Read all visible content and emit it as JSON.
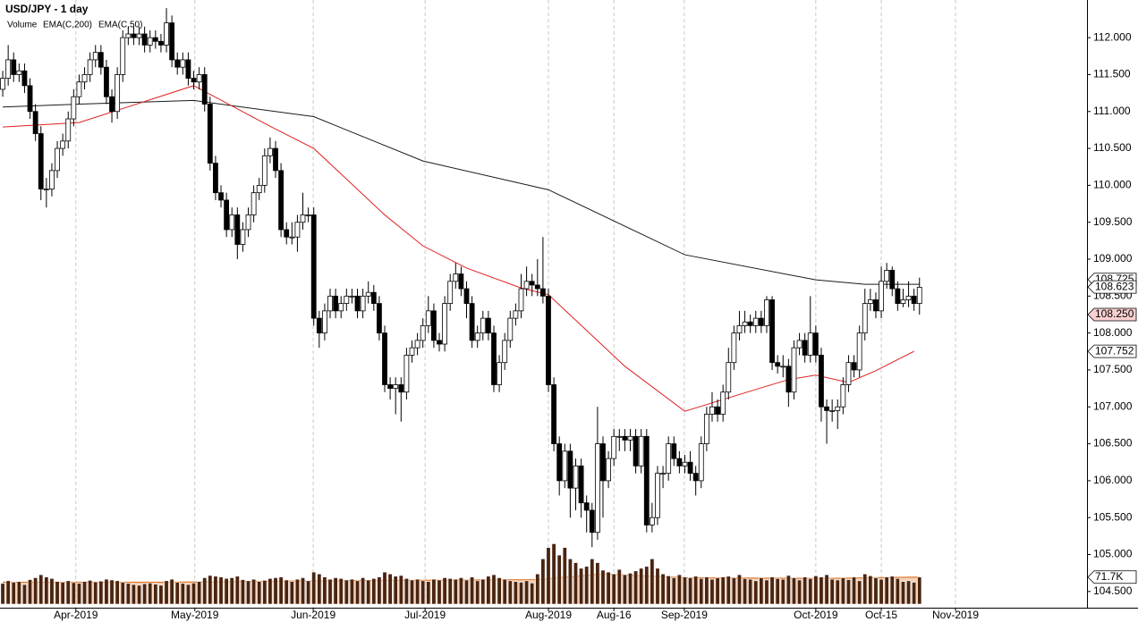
{
  "chart_data": {
    "type": "candlestick",
    "title": "USD/JPY - 1 day",
    "open": [
      111.3,
      111.45,
      111.7,
      111.5,
      111.55,
      111.35,
      111.0,
      110.7,
      109.95,
      109.95,
      110.2,
      110.5,
      110.6,
      110.9,
      111.2,
      111.4,
      111.5,
      111.7,
      111.8,
      111.6,
      111.2,
      111.0,
      111.5,
      112.0,
      112.05,
      112.0,
      112.05,
      111.9,
      112.0,
      111.95,
      111.9,
      112.2,
      111.7,
      111.6,
      111.7,
      111.45,
      111.4,
      111.5,
      111.1,
      110.3,
      109.9,
      109.8,
      109.4,
      109.6,
      109.2,
      109.4,
      109.6,
      109.9,
      110.0,
      110.4,
      110.5,
      110.2,
      109.4,
      109.3,
      109.3,
      109.5,
      109.6,
      109.6,
      108.2,
      108.0,
      108.3,
      108.5,
      108.3,
      108.4,
      108.5,
      108.5,
      108.3,
      108.5,
      108.55,
      108.4,
      108.0,
      107.3,
      107.25,
      107.3,
      107.2,
      107.7,
      107.8,
      107.9,
      108.1,
      108.3,
      107.9,
      107.85,
      108.4,
      108.7,
      108.8,
      108.6,
      108.4,
      107.9,
      108.0,
      108.2,
      108.0,
      107.3,
      107.6,
      107.9,
      108.2,
      108.3,
      108.6,
      108.7,
      108.65,
      108.6,
      108.5,
      107.3,
      106.5,
      106.0,
      106.4,
      105.9,
      106.2,
      105.7,
      105.6,
      105.3,
      106.5,
      106.0,
      106.3,
      106.6,
      106.6,
      106.55,
      106.6,
      106.2,
      106.6,
      105.4,
      105.5,
      106.1,
      106.1,
      106.5,
      106.3,
      106.2,
      106.25,
      106.1,
      106.0,
      106.5,
      106.9,
      107.0,
      106.9,
      107.2,
      107.6,
      108.0,
      108.1,
      108.15,
      108.1,
      108.2,
      108.1,
      108.45,
      107.6,
      107.55,
      107.55,
      107.2,
      107.8,
      107.9,
      107.7,
      108.0,
      107.7,
      107.0,
      106.95,
      106.95,
      107.0,
      107.3,
      107.6,
      107.5,
      108.0,
      108.4,
      108.45,
      108.3,
      108.7,
      108.85,
      108.6,
      108.4,
      108.45,
      108.5,
      108.4
    ],
    "high": [
      111.55,
      111.9,
      111.8,
      111.65,
      111.65,
      111.45,
      111.1,
      110.8,
      110.1,
      110.3,
      110.6,
      110.7,
      111.0,
      111.3,
      111.5,
      111.6,
      111.8,
      111.9,
      111.9,
      111.7,
      111.3,
      111.6,
      112.1,
      112.15,
      112.15,
      112.15,
      112.15,
      112.1,
      112.1,
      112.05,
      112.4,
      112.3,
      111.8,
      111.8,
      111.8,
      111.55,
      111.6,
      111.6,
      111.2,
      110.4,
      110.0,
      109.9,
      109.7,
      109.7,
      109.5,
      109.7,
      110.0,
      110.1,
      110.5,
      110.65,
      110.6,
      110.3,
      109.5,
      109.5,
      109.6,
      109.9,
      109.7,
      109.7,
      108.3,
      108.4,
      108.6,
      108.6,
      108.5,
      108.6,
      108.6,
      108.6,
      108.6,
      108.7,
      108.65,
      108.5,
      108.1,
      107.4,
      107.4,
      107.4,
      107.8,
      107.9,
      108.0,
      108.2,
      108.5,
      108.4,
      108.0,
      108.5,
      108.8,
      108.95,
      108.9,
      108.7,
      108.5,
      108.1,
      108.3,
      108.3,
      108.1,
      107.7,
      108.0,
      108.3,
      108.4,
      108.8,
      108.9,
      108.8,
      109.0,
      109.3,
      108.6,
      107.4,
      106.6,
      106.5,
      106.5,
      106.3,
      106.3,
      105.8,
      105.7,
      107.0,
      106.6,
      106.4,
      106.7,
      106.7,
      106.7,
      106.7,
      106.7,
      106.7,
      106.7,
      105.7,
      106.2,
      106.2,
      106.6,
      106.6,
      106.4,
      106.35,
      106.4,
      106.2,
      106.6,
      107.0,
      107.2,
      107.1,
      107.3,
      107.8,
      108.1,
      108.3,
      108.3,
      108.25,
      108.3,
      108.3,
      108.5,
      108.5,
      107.7,
      107.7,
      107.65,
      107.9,
      108.0,
      108.0,
      108.5,
      108.1,
      107.8,
      107.1,
      107.1,
      107.1,
      107.4,
      107.7,
      107.7,
      108.1,
      108.6,
      108.6,
      108.55,
      108.9,
      108.95,
      108.9,
      108.7,
      108.6,
      108.7,
      108.6,
      108.75
    ],
    "low": [
      111.2,
      111.35,
      111.4,
      111.4,
      111.25,
      110.9,
      110.6,
      109.8,
      109.7,
      109.85,
      110.1,
      110.4,
      110.5,
      110.8,
      111.1,
      111.3,
      111.4,
      111.6,
      111.5,
      111.1,
      110.85,
      110.9,
      111.4,
      111.9,
      111.9,
      111.9,
      111.8,
      111.8,
      111.85,
      111.8,
      111.8,
      111.6,
      111.5,
      111.5,
      111.35,
      111.3,
      111.3,
      111.0,
      110.2,
      109.8,
      109.7,
      109.3,
      109.3,
      109.0,
      109.1,
      109.3,
      109.5,
      109.8,
      109.9,
      110.3,
      110.1,
      109.3,
      109.2,
      109.2,
      109.1,
      109.4,
      109.5,
      108.1,
      107.8,
      107.9,
      108.2,
      108.2,
      108.2,
      108.3,
      108.4,
      108.2,
      108.2,
      108.4,
      108.3,
      107.9,
      107.2,
      107.1,
      106.9,
      106.8,
      107.1,
      107.6,
      107.7,
      107.8,
      108.0,
      107.8,
      107.75,
      107.75,
      108.3,
      108.6,
      108.5,
      108.2,
      107.8,
      107.8,
      107.9,
      107.9,
      107.2,
      107.2,
      107.5,
      107.8,
      108.1,
      108.2,
      108.5,
      108.5,
      108.5,
      108.4,
      107.2,
      106.4,
      105.8,
      105.9,
      105.5,
      105.6,
      105.5,
      105.3,
      105.1,
      105.2,
      105.5,
      105.9,
      106.2,
      106.4,
      106.4,
      106.4,
      106.1,
      106.1,
      105.3,
      105.3,
      105.4,
      105.9,
      106.0,
      106.2,
      106.1,
      106.1,
      106.0,
      105.8,
      105.9,
      106.4,
      106.8,
      106.8,
      106.8,
      107.1,
      107.5,
      107.9,
      108.0,
      108.0,
      108.0,
      108.0,
      108.0,
      107.5,
      107.45,
      107.4,
      107.0,
      107.1,
      107.7,
      107.6,
      107.6,
      107.6,
      106.8,
      106.5,
      106.8,
      106.7,
      106.9,
      107.2,
      107.4,
      107.4,
      107.9,
      108.3,
      108.2,
      108.2,
      108.6,
      108.5,
      108.3,
      108.35,
      108.35,
      108.3,
      108.25
    ],
    "close": [
      111.45,
      111.7,
      111.5,
      111.55,
      111.35,
      111.0,
      110.7,
      109.95,
      109.95,
      110.2,
      110.5,
      110.6,
      110.9,
      111.2,
      111.4,
      111.5,
      111.7,
      111.8,
      111.6,
      111.2,
      111.0,
      111.5,
      112.0,
      112.05,
      112.0,
      112.05,
      111.9,
      112.0,
      111.95,
      111.9,
      112.2,
      111.7,
      111.6,
      111.7,
      111.45,
      111.4,
      111.5,
      111.1,
      110.3,
      109.9,
      109.8,
      109.4,
      109.6,
      109.2,
      109.4,
      109.6,
      109.9,
      110.0,
      110.4,
      110.5,
      110.2,
      109.4,
      109.3,
      109.3,
      109.5,
      109.6,
      109.6,
      108.2,
      108.0,
      108.3,
      108.5,
      108.3,
      108.4,
      108.5,
      108.5,
      108.3,
      108.5,
      108.55,
      108.4,
      108.0,
      107.3,
      107.25,
      107.3,
      107.2,
      107.7,
      107.8,
      107.9,
      108.1,
      108.3,
      107.9,
      107.85,
      108.4,
      108.7,
      108.8,
      108.6,
      108.4,
      107.9,
      108.0,
      108.2,
      108.0,
      107.3,
      107.6,
      107.9,
      108.2,
      108.3,
      108.6,
      108.7,
      108.65,
      108.6,
      108.5,
      107.3,
      106.5,
      106.0,
      106.4,
      105.9,
      106.2,
      105.7,
      105.6,
      105.3,
      106.5,
      106.0,
      106.3,
      106.6,
      106.6,
      106.55,
      106.6,
      106.2,
      106.6,
      105.4,
      105.5,
      106.1,
      106.1,
      106.5,
      106.3,
      106.2,
      106.25,
      106.1,
      106.0,
      106.5,
      106.9,
      107.0,
      106.9,
      107.2,
      107.6,
      108.0,
      108.1,
      108.15,
      108.1,
      108.2,
      108.1,
      108.45,
      107.6,
      107.55,
      107.55,
      107.2,
      107.8,
      107.9,
      107.7,
      108.0,
      107.7,
      107.0,
      106.95,
      106.95,
      107.0,
      107.3,
      107.6,
      107.5,
      108.0,
      108.4,
      108.45,
      108.3,
      108.7,
      108.85,
      108.6,
      108.4,
      108.45,
      108.5,
      108.4,
      108.62
    ],
    "xlim": [
      -0.5,
      198.7
    ],
    "xticks": [
      {
        "value": 13.4,
        "label": "Apr-2019"
      },
      {
        "value": 35.2,
        "label": "May-2019"
      },
      {
        "value": 56.9,
        "label": "Jun-2019"
      },
      {
        "value": 77.4,
        "label": "Jul-2019"
      },
      {
        "value": 100,
        "label": "Aug-2019"
      },
      {
        "value": 112,
        "label": "Aug-16"
      },
      {
        "value": 124.9,
        "label": "Sep-2019"
      },
      {
        "value": 149,
        "label": "Oct-2019"
      },
      {
        "value": 161,
        "label": "Oct-15"
      },
      {
        "value": 174.6,
        "label": "Nov-2019"
      }
    ],
    "ylim": [
      104.28,
      112.51
    ],
    "yticks": [
      {
        "value": 104.5,
        "label": "104.500"
      },
      {
        "value": 105,
        "label": "105.000"
      },
      {
        "value": 105.5,
        "label": "105.500"
      },
      {
        "value": 106,
        "label": "106.000"
      },
      {
        "value": 106.5,
        "label": "106.500"
      },
      {
        "value": 107,
        "label": "107.000"
      },
      {
        "value": 107.5,
        "label": "107.500"
      },
      {
        "value": 108,
        "label": "108.000"
      },
      {
        "value": 108.5,
        "label": "108.500"
      },
      {
        "value": 109,
        "label": "109.000"
      },
      {
        "value": 109.5,
        "label": "109.500"
      },
      {
        "value": 110,
        "label": "110.000"
      },
      {
        "value": 110.5,
        "label": "110.500"
      },
      {
        "value": 111,
        "label": "111.000"
      },
      {
        "value": 111.5,
        "label": "111.500"
      },
      {
        "value": 112,
        "label": "112.000"
      }
    ],
    "series": [
      {
        "name": "EMA(C,200)",
        "color": "#1a1a1a",
        "x": [
          0,
          14,
          35,
          57,
          77,
          100,
          125,
          149,
          158,
          168
        ],
        "values": [
          111.06,
          111.1,
          111.15,
          110.93,
          110.33,
          109.94,
          109.06,
          108.72,
          108.66,
          108.66
        ]
      },
      {
        "name": "EMA(C,50)",
        "color": "#e02020",
        "x": [
          0,
          14,
          35,
          49,
          57,
          70,
          77,
          85,
          95,
          100,
          114,
          125,
          136,
          144,
          149,
          155,
          160,
          167
        ],
        "values": [
          110.79,
          110.85,
          111.35,
          110.8,
          110.5,
          109.6,
          109.18,
          108.88,
          108.61,
          108.52,
          107.55,
          106.94,
          107.19,
          107.37,
          107.43,
          107.33,
          107.49,
          107.752
        ]
      }
    ],
    "volume": {
      "name": "Volume",
      "color": "#e07a30",
      "bar_color": "#4a2410",
      "lim": [
        0,
        180000
      ],
      "values": [
        55000,
        62000,
        58000,
        60000,
        52000,
        65000,
        70000,
        78000,
        72000,
        68000,
        60000,
        58000,
        62000,
        57000,
        55000,
        60000,
        63000,
        59000,
        61000,
        66000,
        64000,
        62000,
        58000,
        55000,
        52000,
        50000,
        54000,
        56000,
        53000,
        50000,
        62000,
        66000,
        58000,
        55000,
        52000,
        56000,
        60000,
        70000,
        76000,
        74000,
        72000,
        68000,
        70000,
        74000,
        65000,
        62000,
        66000,
        60000,
        63000,
        68000,
        70000,
        72000,
        64000,
        60000,
        66000,
        70000,
        62000,
        85000,
        80000,
        72000,
        66000,
        70000,
        68000,
        64000,
        66000,
        62000,
        70000,
        64000,
        68000,
        72000,
        85000,
        80000,
        74000,
        76000,
        68000,
        64000,
        66000,
        62000,
        60000,
        66000,
        64000,
        70000,
        68000,
        66000,
        70000,
        64000,
        72000,
        62000,
        66000,
        74000,
        78000,
        70000,
        66000,
        62000,
        60000,
        58000,
        62000,
        56000,
        80000,
        120000,
        150000,
        160000,
        130000,
        150000,
        120000,
        110000,
        95000,
        100000,
        120000,
        110000,
        90000,
        85000,
        80000,
        92000,
        78000,
        82000,
        88000,
        95000,
        100000,
        120000,
        95000,
        80000,
        75000,
        70000,
        78000,
        72000,
        70000,
        74000,
        68000,
        72000,
        66000,
        70000,
        72000,
        74000,
        70000,
        78000,
        68000,
        66000,
        62000,
        70000,
        64000,
        72000,
        68000,
        66000,
        76000,
        70000,
        64000,
        72000,
        68000,
        75000,
        72000,
        78000,
        66000,
        64000,
        70000,
        65000,
        72000,
        62000,
        80000,
        75000,
        70000,
        66000,
        72000,
        74000,
        68000,
        60000,
        62000,
        58000,
        71700
      ],
      "ma_x": [
        0,
        30,
        60,
        98,
        110,
        125,
        150,
        168
      ],
      "ma_values": [
        58000,
        58000,
        62000,
        65000,
        80000,
        70000,
        68000,
        71700
      ]
    },
    "price_flags": [
      {
        "value": 108.725,
        "label": "108.725",
        "color": "#ffffff"
      },
      {
        "value": 108.623,
        "label": "108.623",
        "color": "#ffffff"
      },
      {
        "value": 108.25,
        "label": "108.250",
        "color": "#f8d0d0"
      },
      {
        "value": 107.752,
        "label": "107.752",
        "color": "#ffffff"
      }
    ],
    "volume_flag": {
      "value": 71700,
      "label": "71.7K"
    }
  }
}
